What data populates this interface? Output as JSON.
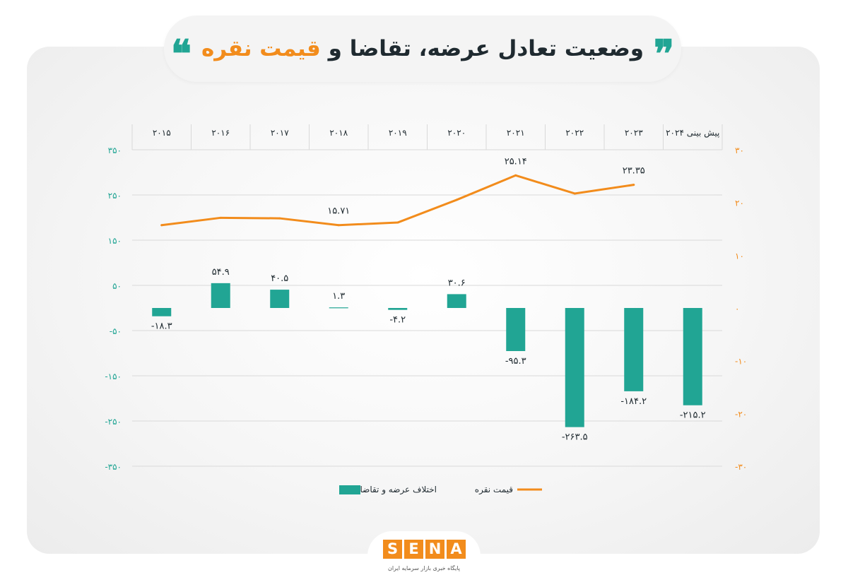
{
  "header": {
    "title_main": "وضعیت تعادل عرضه، تقاضا و",
    "title_highlight": "قیمت نقره",
    "quote_open": "❞",
    "quote_close": "❝"
  },
  "colors": {
    "bar": "#21a594",
    "line": "#f28c1c",
    "left_axis": "#21a594",
    "right_axis": "#f28c1c",
    "text": "#1f2a30"
  },
  "chart_data": {
    "type": "bar+line",
    "categories": [
      "۲۰۱۵",
      "۲۰۱۶",
      "۲۰۱۷",
      "۲۰۱۸",
      "۲۰۱۹",
      "۲۰۲۰",
      "۲۰۲۱",
      "۲۰۲۲",
      "۲۰۲۳",
      "پیش بینی ۲۰۲۴"
    ],
    "left_axis": {
      "ticks": [
        350,
        250,
        150,
        50,
        -50,
        -150,
        -250,
        -350
      ],
      "tick_labels": [
        "۳۵۰",
        "۲۵۰",
        "۱۵۰",
        "۵۰",
        "-۵۰",
        "-۱۵۰",
        "-۲۵۰",
        "-۳۵۰"
      ],
      "ylim": [
        -350,
        350
      ]
    },
    "right_axis": {
      "ticks": [
        30,
        20,
        10,
        0,
        -10,
        -20,
        -30
      ],
      "tick_labels": [
        "۳۰",
        "۲۰",
        "۱۰",
        "۰",
        "-۱۰",
        "-۲۰",
        "-۳۰"
      ],
      "ylim": [
        -30,
        30
      ]
    },
    "grid": true,
    "series": [
      {
        "name": "اختلاف عرضه و تقاضا",
        "type": "bar",
        "axis": "left",
        "values": [
          -18.3,
          54.9,
          40.5,
          1.3,
          -4.2,
          30.6,
          -95.3,
          -263.5,
          -184.2,
          -215.2
        ],
        "labels": [
          "-۱۸.۳",
          "۵۴.۹",
          "۴۰.۵",
          "۱.۳",
          "-۴.۲",
          "۳۰.۶",
          "-۹۵.۳",
          "-۲۶۳.۵",
          "-۱۸۴.۲",
          "-۲۱۵.۲"
        ]
      },
      {
        "name": "قیمت نقره",
        "type": "line",
        "axis": "right",
        "values": [
          15.7,
          17.1,
          17.0,
          15.71,
          16.2,
          20.5,
          25.14,
          21.7,
          23.35,
          null
        ],
        "labels": [
          null,
          null,
          null,
          "۱۵.۷۱",
          null,
          null,
          "۲۵.۱۴",
          null,
          "۲۳.۳۵",
          null
        ]
      }
    ],
    "legend": {
      "placement": "bottom-center"
    }
  },
  "footer": {
    "logo_letters": [
      "S",
      "E",
      "N",
      "A"
    ],
    "tagline": "پایگاه خبری بازار سرمایه ایران"
  }
}
